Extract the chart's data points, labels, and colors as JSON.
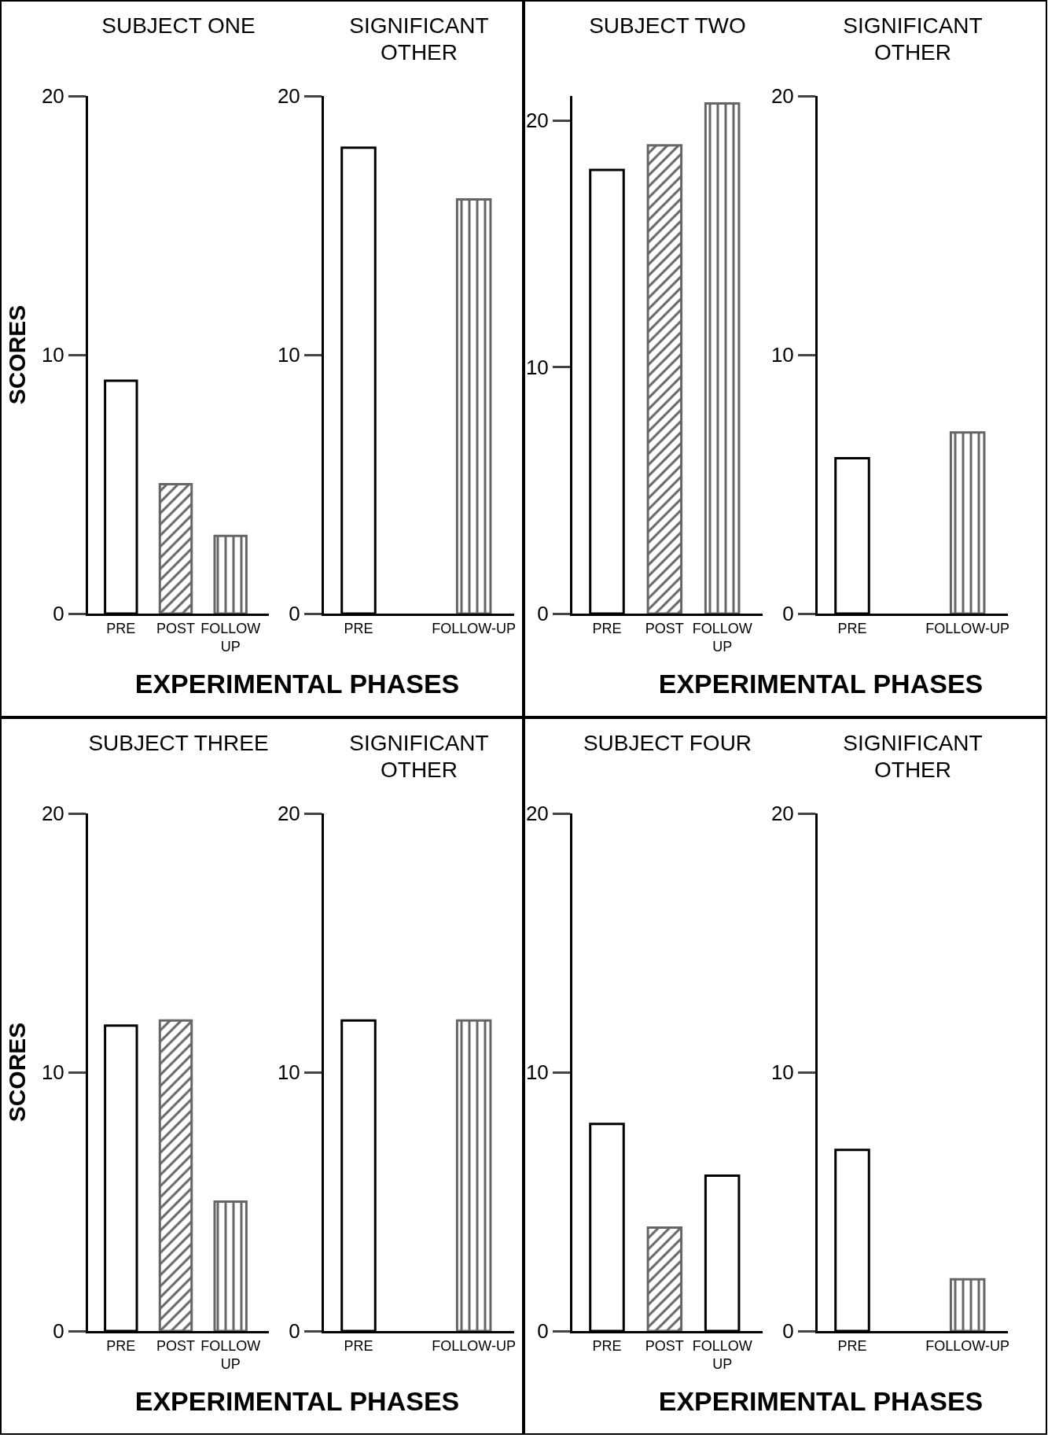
{
  "chart_data": [
    {
      "type": "bar",
      "title": "SUBJECT ONE",
      "ylabel": "SCORES",
      "xlabel": "EXPERIMENTAL PHASES",
      "categories": [
        "PRE",
        "POST",
        "FOLLOW UP"
      ],
      "values": [
        9,
        5,
        3
      ],
      "colors": [
        "#ffffff",
        "#666666",
        "#666666"
      ],
      "ylim": [
        0,
        20
      ],
      "yticks": [
        0,
        10,
        20
      ]
    },
    {
      "type": "bar",
      "title": "SIGNIFICANT OTHER",
      "categories": [
        "PRE",
        null,
        "FOLLOW-UP"
      ],
      "values": [
        18,
        null,
        16
      ],
      "colors": [
        "#ffffff",
        "#ffffff",
        "#666666"
      ],
      "ylim": [
        0,
        20
      ],
      "yticks": [
        0,
        10,
        20
      ]
    },
    {
      "type": "bar",
      "title": "SUBJECT TWO",
      "xlabel": "EXPERIMENTAL PHASES",
      "categories": [
        "PRE",
        "POST",
        "FOLLOW UP"
      ],
      "values": [
        18,
        19,
        20.7
      ],
      "colors": [
        "#ffffff",
        "#666666",
        "#666666"
      ],
      "ylim": [
        0,
        21
      ],
      "yticks": [
        0,
        10,
        20
      ]
    },
    {
      "type": "bar",
      "title": "SIGNIFICANT OTHER",
      "categories": [
        "PRE",
        null,
        "FOLLOW-UP"
      ],
      "values": [
        6,
        null,
        7
      ],
      "colors": [
        "#ffffff",
        "#ffffff",
        "#666666"
      ],
      "ylim": [
        0,
        20
      ],
      "yticks": [
        0,
        10,
        20
      ]
    },
    {
      "type": "bar",
      "title": "SUBJECT THREE",
      "ylabel": "SCORES",
      "xlabel": "EXPERIMENTAL PHASES",
      "categories": [
        "PRE",
        "POST",
        "FOLLOW UP"
      ],
      "values": [
        11.8,
        12,
        5
      ],
      "colors": [
        "#ffffff",
        "#666666",
        "#666666"
      ],
      "ylim": [
        0,
        20
      ],
      "yticks": [
        0,
        10,
        20
      ]
    },
    {
      "type": "bar",
      "title": "SIGNIFICANT OTHER",
      "categories": [
        "PRE",
        null,
        "FOLLOW-UP"
      ],
      "values": [
        12,
        null,
        12
      ],
      "colors": [
        "#ffffff",
        "#ffffff",
        "#666666"
      ],
      "ylim": [
        0,
        20
      ],
      "yticks": [
        0,
        10,
        20
      ]
    },
    {
      "type": "bar",
      "title": "SUBJECT FOUR",
      "xlabel": "EXPERIMENTAL PHASES",
      "categories": [
        "PRE",
        "POST",
        "FOLLOW UP"
      ],
      "values": [
        8,
        4,
        6
      ],
      "colors": [
        "#ffffff",
        "#666666",
        "#ffffff"
      ],
      "ylim": [
        0,
        20
      ],
      "yticks": [
        0,
        10,
        20
      ]
    },
    {
      "type": "bar",
      "title": "SIGNIFICANT OTHER",
      "categories": [
        "PRE",
        null,
        "FOLLOW-UP"
      ],
      "values": [
        7,
        null,
        2
      ],
      "colors": [
        "#ffffff",
        "#ffffff",
        "#666666"
      ],
      "ylim": [
        0,
        20
      ],
      "yticks": [
        0,
        10,
        20
      ]
    }
  ]
}
